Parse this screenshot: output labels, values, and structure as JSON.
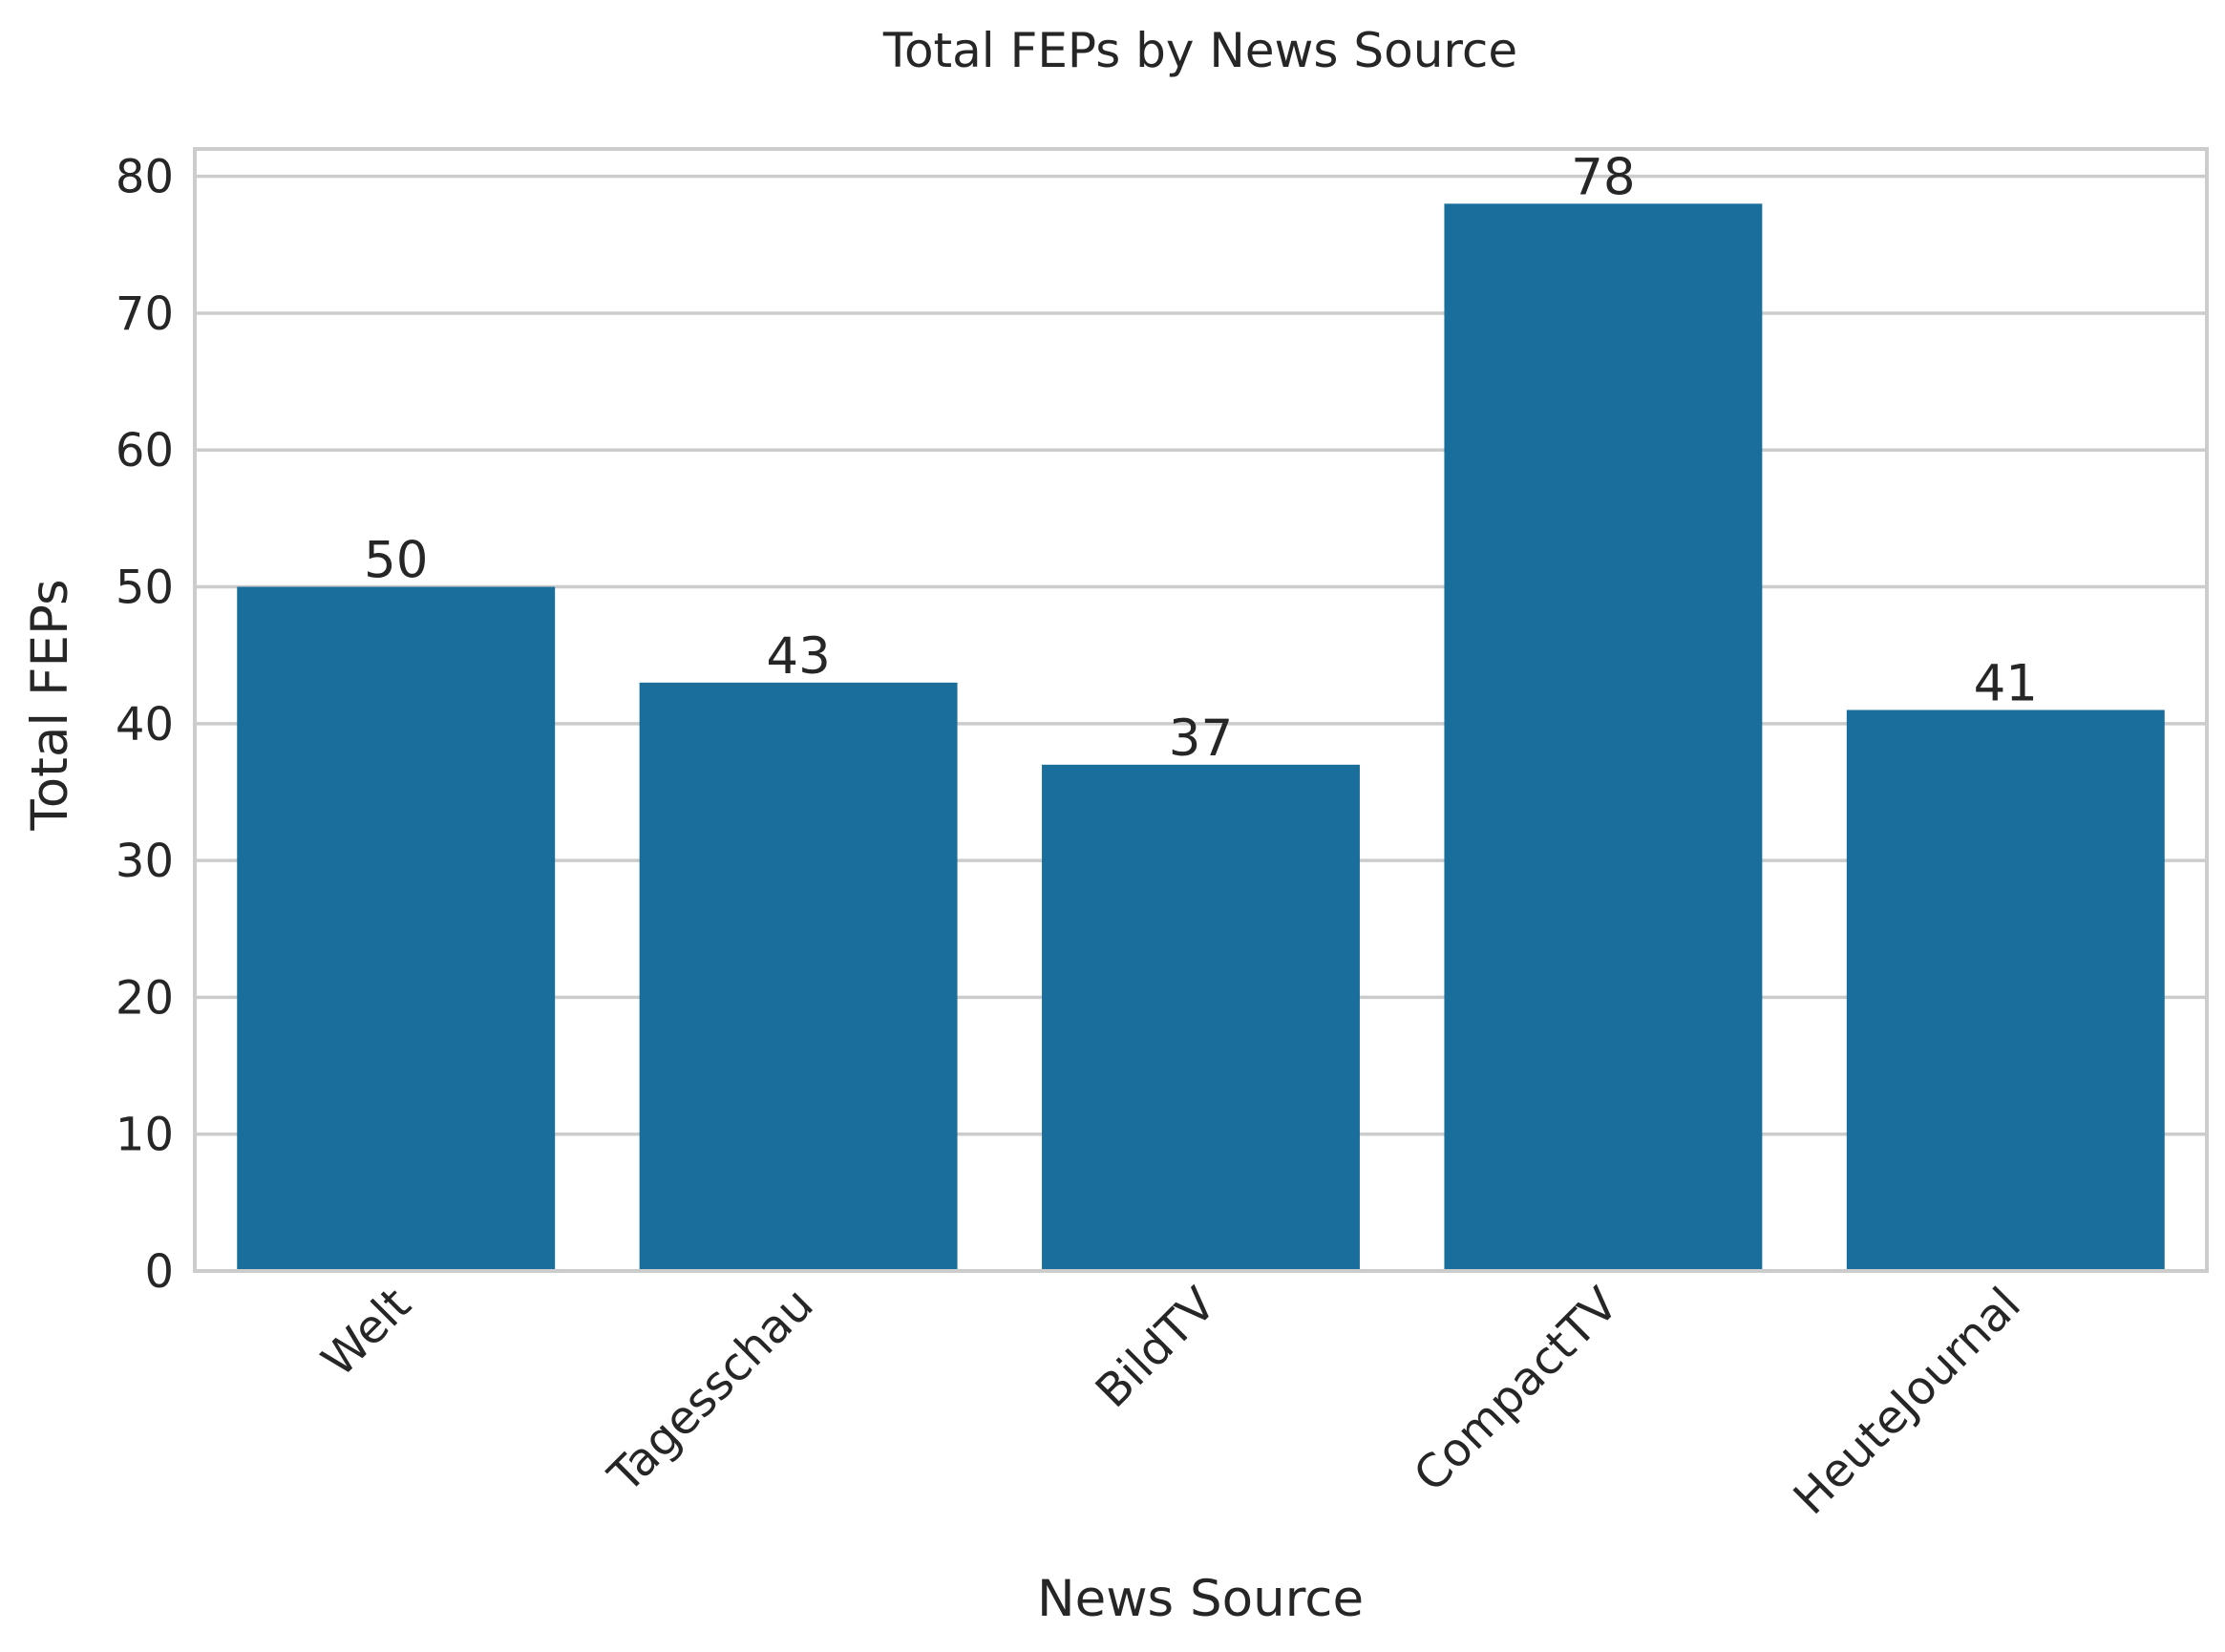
{
  "chart_data": {
    "type": "bar",
    "title": "Total FEPs by News Source",
    "xlabel": "News Source",
    "ylabel": "Total FEPs",
    "categories": [
      "Welt",
      "Tagesschau",
      "BildTV",
      "CompactTV",
      "HeuteJournal"
    ],
    "values": [
      50,
      43,
      37,
      78,
      41
    ],
    "ylim": [
      0,
      82
    ],
    "yticks": [
      0,
      10,
      20,
      30,
      40,
      50,
      60,
      70,
      80
    ],
    "grid": "horizontal",
    "legend": "none",
    "bar_color": "#1a6e9c",
    "x_tick_rotation_deg": 45
  }
}
